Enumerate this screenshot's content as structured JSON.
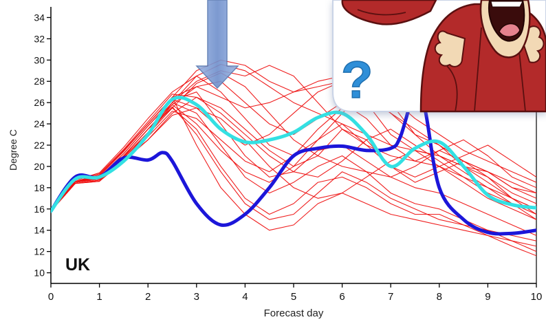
{
  "chart_data": {
    "type": "line",
    "title": "",
    "xlabel": "Forecast day",
    "ylabel": "Degree C",
    "xlim": [
      0,
      10
    ],
    "ylim": [
      9,
      35
    ],
    "xticks": [
      0,
      1,
      2,
      3,
      4,
      5,
      6,
      7,
      8,
      9,
      10
    ],
    "yticks": [
      10,
      12,
      14,
      16,
      18,
      20,
      22,
      24,
      26,
      28,
      30,
      32,
      34
    ],
    "region_label": "UK",
    "grid": false,
    "legend": "none",
    "ensemble": {
      "color": "#ee1111",
      "x": [
        0,
        0.5,
        1,
        1.5,
        2,
        2.5,
        3,
        3.5,
        4,
        4.5,
        5,
        5.5,
        6,
        6.5,
        7,
        7.5,
        8,
        8.5,
        9,
        9.5,
        10
      ],
      "members": [
        [
          15.8,
          18.4,
          18.6,
          21.0,
          23.5,
          26.0,
          28.5,
          29.6,
          29.0,
          27.5,
          26.0,
          25.0,
          24.0,
          23.0,
          22.0,
          21.5,
          21.0,
          20.0,
          19.0,
          17.5,
          16.5
        ],
        [
          15.8,
          18.6,
          19.2,
          21.5,
          24.0,
          26.5,
          29.0,
          30.0,
          29.5,
          28.0,
          27.0,
          27.5,
          28.0,
          27.0,
          25.0,
          23.0,
          22.0,
          20.5,
          19.5,
          18.0,
          17.0
        ],
        [
          15.8,
          18.5,
          19.0,
          21.0,
          23.0,
          25.8,
          27.5,
          28.0,
          26.0,
          24.0,
          23.0,
          24.5,
          26.0,
          24.5,
          22.0,
          20.5,
          21.5,
          22.5,
          21.0,
          19.0,
          18.0
        ],
        [
          15.8,
          18.7,
          19.4,
          21.8,
          24.5,
          27.0,
          28.5,
          27.0,
          24.5,
          22.0,
          21.0,
          22.5,
          25.0,
          27.0,
          26.0,
          23.0,
          21.0,
          19.5,
          18.0,
          16.5,
          15.0
        ],
        [
          15.8,
          18.5,
          18.8,
          20.5,
          22.5,
          25.0,
          26.5,
          25.5,
          23.5,
          21.5,
          20.0,
          21.0,
          23.5,
          22.5,
          20.0,
          18.5,
          19.5,
          20.5,
          19.0,
          17.0,
          15.5
        ],
        [
          15.8,
          18.6,
          19.0,
          21.2,
          23.8,
          26.2,
          27.0,
          24.0,
          21.0,
          19.0,
          19.5,
          21.5,
          22.0,
          20.5,
          19.0,
          18.0,
          17.5,
          16.5,
          15.5,
          14.5,
          13.5
        ],
        [
          15.8,
          18.4,
          18.7,
          20.8,
          23.0,
          26.0,
          25.0,
          22.0,
          19.0,
          17.5,
          18.5,
          20.0,
          21.0,
          19.5,
          17.5,
          16.5,
          16.0,
          15.0,
          14.0,
          13.0,
          12.0
        ],
        [
          15.8,
          18.5,
          18.9,
          21.0,
          23.5,
          25.5,
          23.5,
          20.0,
          17.0,
          15.5,
          16.5,
          18.5,
          19.0,
          18.0,
          16.5,
          15.5,
          15.5,
          14.5,
          13.5,
          12.5,
          11.6
        ],
        [
          15.8,
          18.6,
          19.1,
          21.4,
          24.0,
          26.5,
          22.0,
          18.0,
          15.5,
          14.0,
          14.5,
          16.5,
          17.5,
          16.5,
          15.5,
          15.0,
          14.5,
          14.0,
          13.5,
          13.0,
          12.5
        ],
        [
          15.8,
          18.5,
          19.0,
          21.0,
          23.5,
          25.8,
          24.0,
          21.5,
          19.5,
          18.5,
          20.0,
          22.5,
          24.0,
          22.0,
          20.0,
          19.0,
          20.0,
          21.0,
          22.0,
          20.5,
          19.0
        ],
        [
          15.8,
          18.7,
          19.3,
          21.6,
          24.2,
          26.8,
          26.5,
          25.0,
          23.0,
          21.0,
          19.5,
          19.0,
          20.5,
          22.5,
          23.5,
          22.0,
          20.5,
          19.0,
          17.5,
          16.5,
          15.5
        ],
        [
          15.8,
          18.5,
          18.8,
          20.8,
          23.0,
          25.5,
          27.8,
          28.8,
          27.5,
          25.0,
          22.5,
          21.0,
          20.0,
          19.5,
          19.0,
          20.0,
          21.5,
          20.5,
          19.5,
          18.0,
          17.5
        ],
        [
          15.8,
          18.6,
          19.0,
          21.0,
          23.5,
          26.0,
          28.0,
          29.0,
          28.5,
          29.5,
          28.5,
          26.0,
          23.5,
          22.0,
          21.0,
          20.5,
          20.0,
          19.0,
          18.0,
          17.0,
          16.0
        ],
        [
          15.8,
          18.4,
          18.6,
          20.5,
          22.8,
          25.2,
          24.5,
          22.5,
          20.5,
          19.5,
          21.0,
          23.5,
          25.5,
          26.5,
          25.0,
          23.5,
          22.0,
          20.0,
          18.5,
          17.0,
          16.0
        ],
        [
          15.8,
          18.5,
          19.0,
          21.2,
          23.8,
          26.3,
          25.5,
          23.5,
          22.0,
          23.0,
          25.0,
          27.0,
          28.0,
          26.0,
          23.0,
          21.5,
          21.0,
          20.0,
          19.5,
          18.5,
          17.5
        ],
        [
          15.8,
          18.6,
          19.2,
          21.5,
          24.0,
          26.5,
          27.5,
          26.5,
          25.5,
          26.0,
          27.0,
          28.0,
          28.5,
          28.0,
          26.5,
          24.5,
          23.0,
          21.5,
          20.5,
          19.5,
          18.5
        ],
        [
          15.8,
          18.5,
          18.9,
          20.9,
          23.2,
          25.6,
          23.0,
          19.5,
          16.5,
          15.0,
          15.5,
          17.5,
          19.5,
          18.5,
          17.0,
          16.0,
          15.0,
          14.5,
          14.0,
          13.5,
          13.0
        ],
        [
          15.8,
          18.4,
          18.7,
          20.6,
          22.5,
          24.8,
          25.5,
          24.5,
          22.5,
          20.0,
          18.0,
          17.0,
          17.5,
          19.0,
          20.5,
          21.5,
          20.0,
          18.5,
          17.0,
          16.0,
          15.0
        ]
      ]
    },
    "highlight_series": [
      {
        "color": "#1c16d9",
        "x": [
          0,
          0.5,
          1,
          1.5,
          2,
          2.3,
          2.5,
          3,
          3.5,
          4,
          4.5,
          5,
          5.5,
          6,
          6.5,
          7,
          7.2,
          7.5,
          7.7,
          8,
          8.5,
          9,
          9.5,
          10
        ],
        "y": [
          15.8,
          19.0,
          19.0,
          20.8,
          20.6,
          21.3,
          20.5,
          16.5,
          14.5,
          15.5,
          18.0,
          21.0,
          21.7,
          21.9,
          21.5,
          21.7,
          22.8,
          27.0,
          25.5,
          18.0,
          15.0,
          13.8,
          13.7,
          14.0
        ]
      },
      {
        "color": "#33e0e3",
        "x": [
          0,
          0.5,
          1,
          1.5,
          2,
          2.5,
          3,
          3.5,
          4,
          4.5,
          5,
          5.5,
          6,
          6.5,
          7,
          7.5,
          8,
          8.5,
          9,
          9.5,
          10
        ],
        "y": [
          15.8,
          18.8,
          19.0,
          20.5,
          23.0,
          26.3,
          25.8,
          23.5,
          22.3,
          22.5,
          23.2,
          24.6,
          25.0,
          23.0,
          20.0,
          21.7,
          22.3,
          20.0,
          17.3,
          16.4,
          16.1
        ]
      }
    ]
  },
  "overlay": {
    "arrow_color": "#7f9fd6",
    "arrow_stroke": "#5878b0",
    "cartoon_card_border": "#c9d3e6",
    "cartoon_shirt_color": "#b32a2a",
    "cartoon_skin_color": "#f2d9b5",
    "question_mark": "?",
    "question_mark_color": "#2f8fd8"
  }
}
